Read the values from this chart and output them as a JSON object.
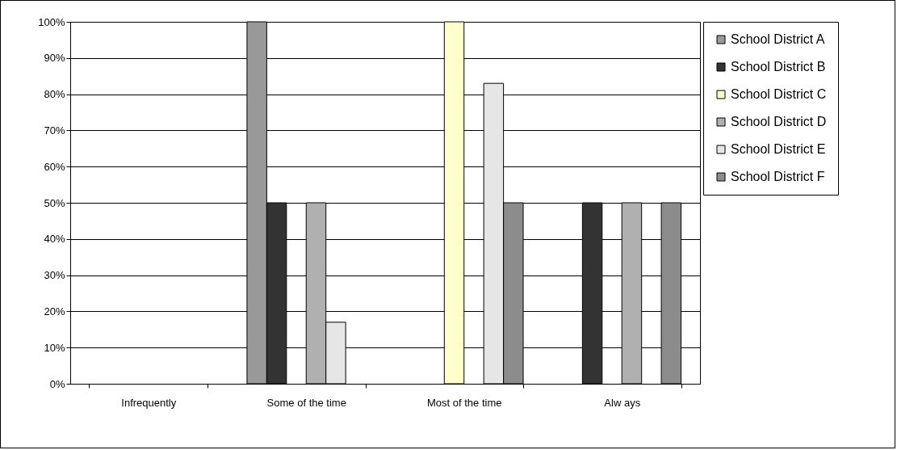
{
  "chart_data": {
    "type": "bar",
    "categories": [
      "Infrequently",
      "Some of the time",
      "Most of the time",
      "Alw ays"
    ],
    "series": [
      {
        "name": "School District A",
        "color": "#999999",
        "values": [
          null,
          100,
          null,
          null
        ]
      },
      {
        "name": "School District B",
        "color": "#333333",
        "values": [
          null,
          50,
          null,
          50
        ]
      },
      {
        "name": "School District C",
        "color": "#ffffcc",
        "values": [
          null,
          null,
          100,
          null
        ]
      },
      {
        "name": "School District D",
        "color": "#b0b0b0",
        "values": [
          null,
          50,
          null,
          50
        ]
      },
      {
        "name": "School District E",
        "color": "#e6e6e6",
        "values": [
          null,
          17,
          83,
          null
        ]
      },
      {
        "name": "School District F",
        "color": "#8c8c8c",
        "values": [
          null,
          null,
          50,
          50
        ]
      }
    ],
    "ylim": [
      0,
      100
    ],
    "yticks": [
      {
        "value": 0,
        "label": "0%"
      },
      {
        "value": 10,
        "label": "10%"
      },
      {
        "value": 20,
        "label": "20%"
      },
      {
        "value": 30,
        "label": "30%"
      },
      {
        "value": 40,
        "label": "40%"
      },
      {
        "value": 50,
        "label": "50%"
      },
      {
        "value": 60,
        "label": "60%"
      },
      {
        "value": 70,
        "label": "70%"
      },
      {
        "value": 80,
        "label": "80%"
      },
      {
        "value": 90,
        "label": "90%"
      },
      {
        "value": 100,
        "label": "100%"
      }
    ],
    "grid": "y",
    "legend": "right"
  }
}
